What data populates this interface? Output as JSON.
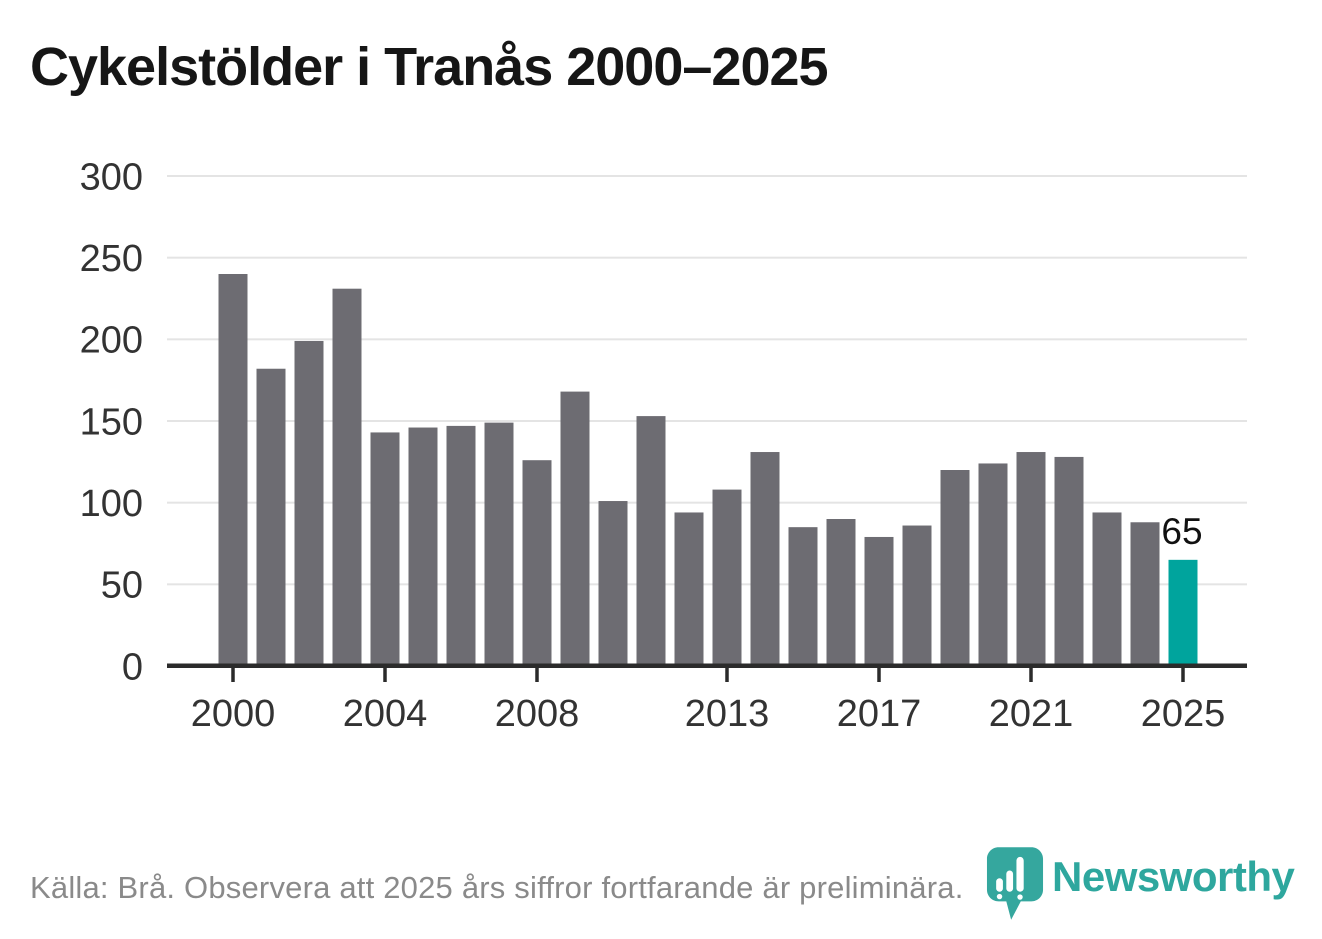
{
  "title": "Cykelstölder i Tranås 2000–2025",
  "chart_data": {
    "type": "bar",
    "x": [
      2000,
      2001,
      2002,
      2003,
      2004,
      2005,
      2006,
      2007,
      2008,
      2009,
      2010,
      2011,
      2012,
      2013,
      2014,
      2015,
      2016,
      2017,
      2018,
      2019,
      2020,
      2021,
      2022,
      2023,
      2024,
      2025
    ],
    "values": [
      240,
      182,
      199,
      231,
      143,
      146,
      147,
      149,
      126,
      168,
      101,
      153,
      94,
      108,
      131,
      85,
      90,
      79,
      86,
      120,
      124,
      131,
      128,
      94,
      88,
      65
    ],
    "title": "Cykelstölder i Tranås 2000–2025",
    "xlabel": "",
    "ylabel": "",
    "ylim": [
      0,
      300
    ],
    "yticks": [
      0,
      50,
      100,
      150,
      200,
      250,
      300
    ],
    "xticks": [
      2000,
      2004,
      2008,
      2013,
      2017,
      2021,
      2025
    ],
    "grid": true,
    "legend_position": "none",
    "bar_color": "#6d6c72",
    "highlight": {
      "year": 2025,
      "color": "#00a49d",
      "label": "65",
      "label_color": "#111111"
    },
    "axis_color": "#2b2b2b",
    "gridline_color": "#e4e4e4",
    "tick_label_color": "#333333"
  },
  "footer": {
    "source_text": "Källa: Brå. Observera att 2025 års siffror fortfarande är preliminära."
  },
  "logo": {
    "brand": "Newsworthy",
    "color": "#2ea79e",
    "icon": "newsworthy-pin-icon"
  }
}
